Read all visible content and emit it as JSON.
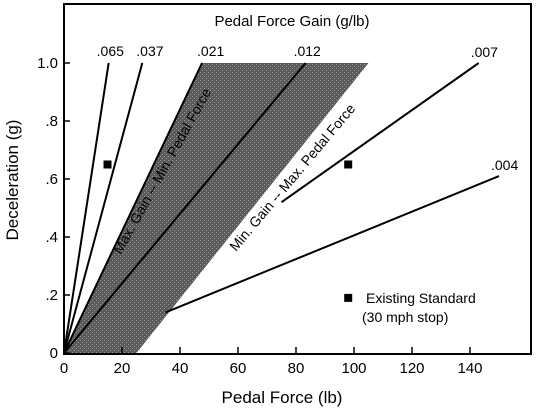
{
  "chart_data": {
    "type": "line",
    "title": "Pedal Force Gain (g/lb)",
    "xlabel": "Pedal Force (lb)",
    "ylabel": "Deceleration (g)",
    "xlim": [
      0,
      160
    ],
    "ylim": [
      0,
      1.0
    ],
    "x_ticks": [
      0,
      20,
      40,
      60,
      80,
      100,
      120,
      140
    ],
    "x_tick_labels": [
      "0",
      "20",
      "40",
      "60",
      "80",
      "100",
      "120",
      "140"
    ],
    "y_ticks": [
      0,
      0.2,
      0.4,
      0.6,
      0.8,
      1.0
    ],
    "y_tick_labels": [
      "0",
      ".2",
      ".4",
      ".6",
      ".8",
      "1.0"
    ],
    "grid": false,
    "series": [
      {
        "name": ".065",
        "x": [
          0,
          15.4
        ],
        "y": [
          0,
          1.0
        ]
      },
      {
        "name": ".037",
        "x": [
          0,
          27
        ],
        "y": [
          0,
          1.0
        ]
      },
      {
        "name": ".021",
        "x": [
          0,
          47.6
        ],
        "y": [
          0,
          1.0
        ]
      },
      {
        "name": ".012",
        "x": [
          0,
          83.3
        ],
        "y": [
          0,
          1.0
        ]
      },
      {
        "name": ".007",
        "x": [
          75,
          143
        ],
        "y": [
          0.52,
          1.0
        ]
      },
      {
        "name": ".004",
        "x": [
          35,
          150
        ],
        "y": [
          0.14,
          0.61
        ]
      }
    ],
    "shaded_region": {
      "label_upper": "Max. Gain -- Min. Pedal Force",
      "label_lower": "Min. Gain -- Max. Pedal Force",
      "polygon": [
        [
          0,
          0
        ],
        [
          47.6,
          1.0
        ],
        [
          105,
          1.0
        ],
        [
          25,
          0
        ]
      ]
    },
    "points": [
      {
        "x": 15,
        "y": 0.65
      },
      {
        "x": 98,
        "y": 0.65
      },
      {
        "x": 98,
        "y": 0.19
      }
    ],
    "legend": {
      "label": "Existing Standard",
      "sublabel": "(30 mph stop)"
    }
  }
}
